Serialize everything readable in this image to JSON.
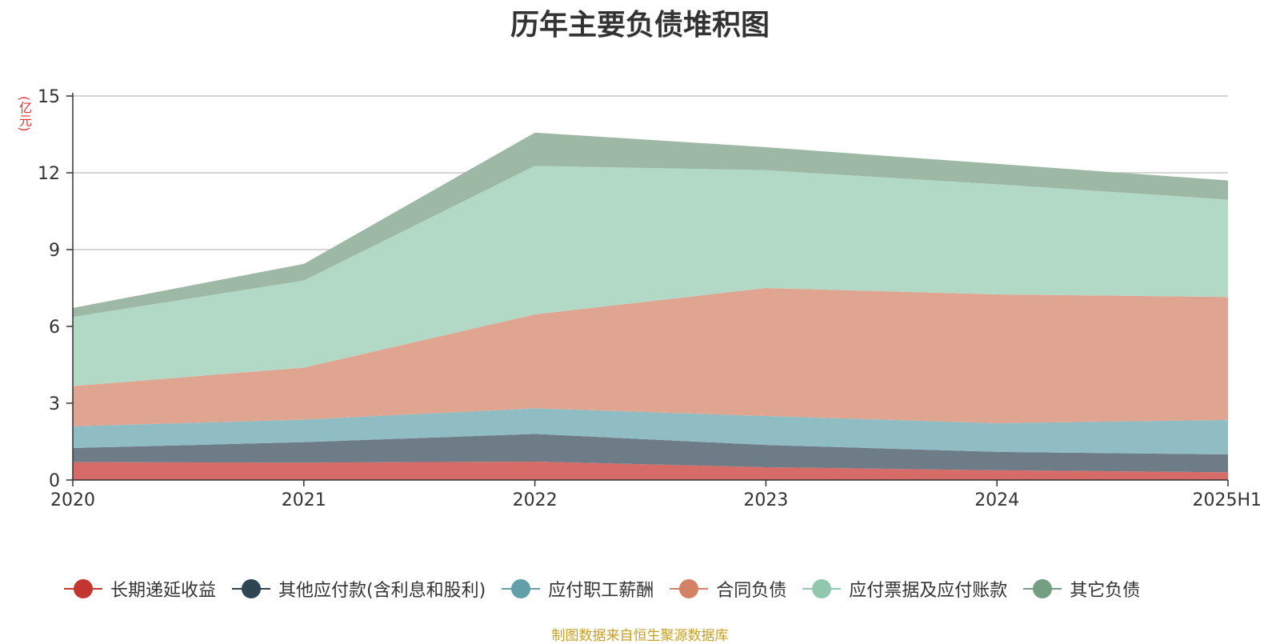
{
  "title": "历年主要负债堆积图",
  "unit_label": "(亿元)",
  "source": "制图数据来自恒生聚源数据库",
  "chart_data": {
    "type": "area",
    "stacked": true,
    "categories": [
      "2020",
      "2021",
      "2022",
      "2023",
      "2024",
      "2025H1"
    ],
    "ylim": [
      0,
      15
    ],
    "yticks": [
      0,
      3,
      6,
      9,
      12,
      15
    ],
    "grid": true,
    "legend_position": "bottom",
    "series": [
      {
        "name": "长期递延收益",
        "color": "#c23531",
        "fill": "#d66b67",
        "values": [
          0.7,
          0.68,
          0.72,
          0.5,
          0.38,
          0.3
        ]
      },
      {
        "name": "其他应付款(含利息和股利)",
        "color": "#2f4554",
        "fill": "#6e7c88",
        "values": [
          0.55,
          0.8,
          1.08,
          0.87,
          0.72,
          0.7
        ]
      },
      {
        "name": "应付职工薪酬",
        "color": "#61a0a8",
        "fill": "#90bcc3",
        "values": [
          0.85,
          0.88,
          1.0,
          1.13,
          1.12,
          1.35
        ]
      },
      {
        "name": "合同负债",
        "color": "#d48265",
        "fill": "#e0a590",
        "values": [
          1.57,
          2.03,
          3.67,
          5.0,
          5.03,
          4.8
        ]
      },
      {
        "name": "应付票据及应付账款",
        "color": "#91c7ae",
        "fill": "#b2d8c6",
        "values": [
          2.7,
          3.4,
          5.8,
          4.6,
          4.3,
          3.8
        ]
      },
      {
        "name": "其它负债",
        "color": "#749f83",
        "fill": "#9db9a6",
        "values": [
          0.35,
          0.65,
          1.3,
          0.9,
          0.8,
          0.75
        ]
      }
    ]
  }
}
